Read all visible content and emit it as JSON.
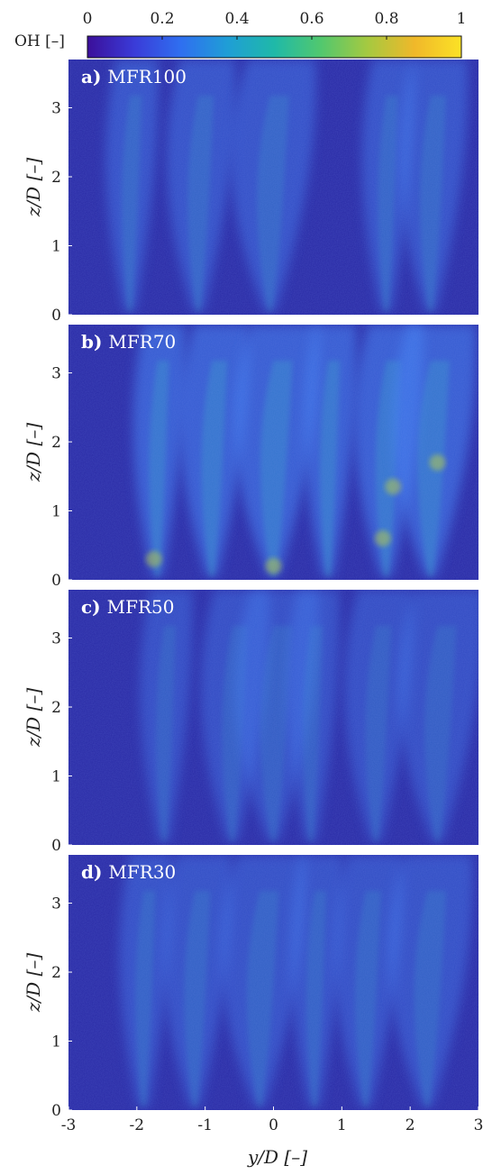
{
  "colorbar": {
    "label": "OH [–]",
    "ticks": [
      "0",
      "0.2",
      "0.4",
      "0.6",
      "0.8",
      "1"
    ],
    "tick_values": [
      0,
      0.2,
      0.4,
      0.6,
      0.8,
      1
    ],
    "colors": [
      "#3b0f9a",
      "#3a3bd8",
      "#2f6ff0",
      "#1f9ed6",
      "#1fb9a8",
      "#52c86e",
      "#a6c940",
      "#f0b82a",
      "#fbe226"
    ]
  },
  "panels": [
    {
      "letter": "a)",
      "name": "MFR100"
    },
    {
      "letter": "b)",
      "name": "MFR70"
    },
    {
      "letter": "c)",
      "name": "MFR50"
    },
    {
      "letter": "d)",
      "name": "MFR30"
    }
  ],
  "ylabel": "z/D [–]",
  "xlabel": "y/D [–]",
  "yticks": [
    "3",
    "2",
    "1",
    "0"
  ],
  "ytick_values": [
    3,
    2,
    1,
    0
  ],
  "xticks": [
    "-3",
    "-2",
    "-1",
    "0",
    "1",
    "2",
    "3"
  ],
  "xtick_values": [
    -3,
    -2,
    -1,
    0,
    1,
    2,
    3
  ],
  "ylim": [
    0,
    3.7
  ],
  "xlim": [
    -3,
    3
  ]
}
